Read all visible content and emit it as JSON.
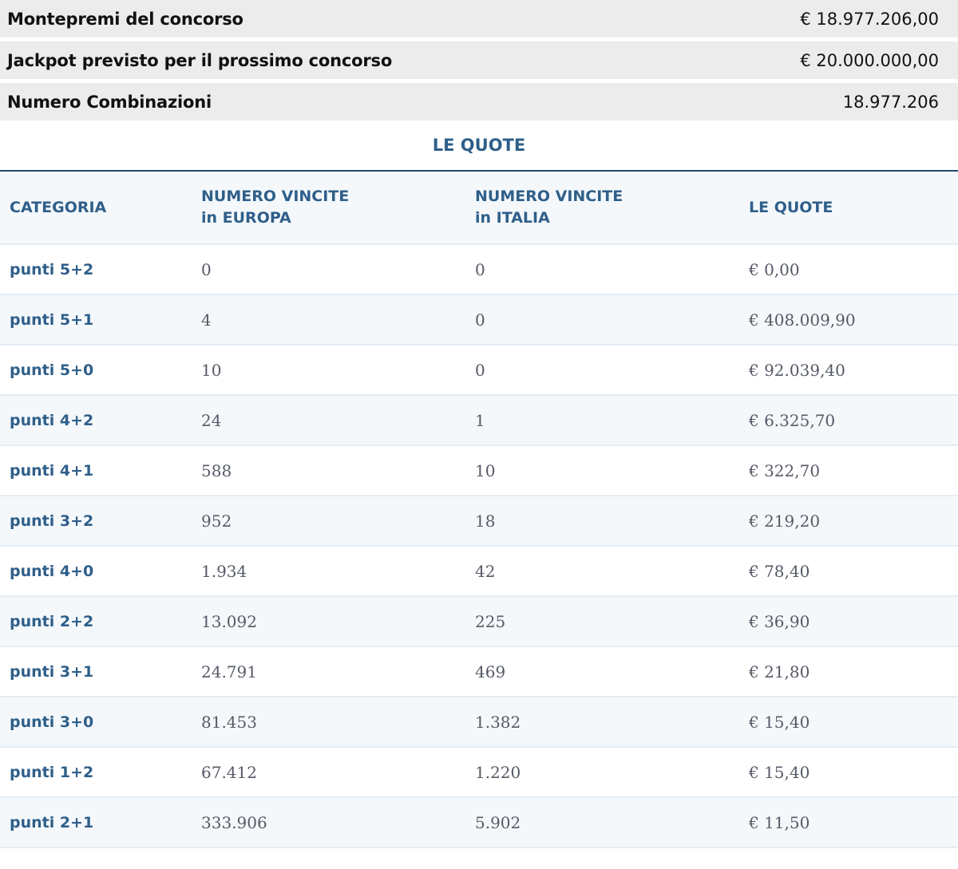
{
  "summary": [
    {
      "label": "Montepremi del concorso",
      "value": "€ 18.977.206,00"
    },
    {
      "label": "Jackpot previsto per il prossimo concorso",
      "value": "€ 20.000.000,00"
    },
    {
      "label": "Numero Combinazioni",
      "value": "18.977.206"
    }
  ],
  "quote_section": {
    "title": "LE QUOTE",
    "headers": {
      "categoria": "CATEGORIA",
      "europa_line1": "NUMERO VINCITE",
      "europa_line2": "in EUROPA",
      "italia_line1": "NUMERO VINCITE",
      "italia_line2": "in ITALIA",
      "quote": "LE QUOTE"
    },
    "rows": [
      {
        "categoria": "punti 5+2",
        "europa": "0",
        "italia": "0",
        "quota": "€ 0,00"
      },
      {
        "categoria": "punti 5+1",
        "europa": "4",
        "italia": "0",
        "quota": "€ 408.009,90"
      },
      {
        "categoria": "punti 5+0",
        "europa": "10",
        "italia": "0",
        "quota": "€ 92.039,40"
      },
      {
        "categoria": "punti 4+2",
        "europa": "24",
        "italia": "1",
        "quota": "€ 6.325,70"
      },
      {
        "categoria": "punti 4+1",
        "europa": "588",
        "italia": "10",
        "quota": "€ 322,70"
      },
      {
        "categoria": "punti 3+2",
        "europa": "952",
        "italia": "18",
        "quota": "€ 219,20"
      },
      {
        "categoria": "punti 4+0",
        "europa": "1.934",
        "italia": "42",
        "quota": "€ 78,40"
      },
      {
        "categoria": "punti 2+2",
        "europa": "13.092",
        "italia": "225",
        "quota": "€ 36,90"
      },
      {
        "categoria": "punti 3+1",
        "europa": "24.791",
        "italia": "469",
        "quota": "€ 21,80"
      },
      {
        "categoria": "punti 3+0",
        "europa": "81.453",
        "italia": "1.382",
        "quota": "€ 15,40"
      },
      {
        "categoria": "punti 1+2",
        "europa": "67.412",
        "italia": "1.220",
        "quota": "€ 15,40"
      },
      {
        "categoria": "punti 2+1",
        "europa": "333.906",
        "italia": "5.902",
        "quota": "€ 11,50"
      }
    ]
  },
  "colors": {
    "accent": "#2f5f8a",
    "summary_bg": "#ececec",
    "stripe_bg": "#f4f8fb",
    "body_text": "#555a66"
  }
}
